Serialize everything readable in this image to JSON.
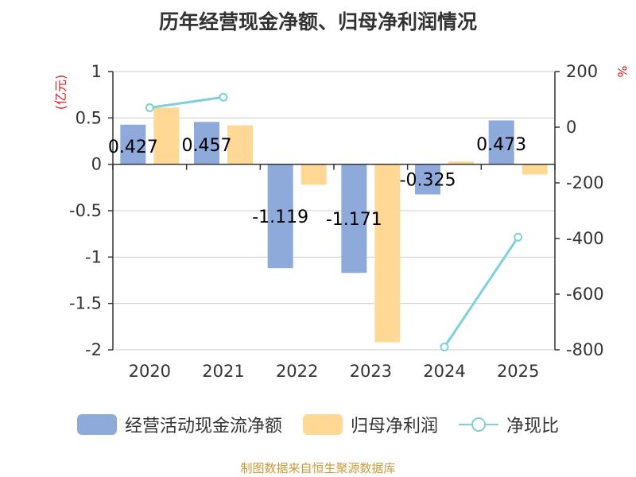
{
  "chart_data": {
    "type": "bar",
    "title": "历年经营现金净额、归母净利润情况",
    "categories": [
      "2020",
      "2021",
      "2022",
      "2023",
      "2024",
      "2025"
    ],
    "series": [
      {
        "name": "经营活动现金流净额",
        "axis": "left",
        "color": "#8eaadb",
        "values": [
          0.427,
          0.457,
          -1.119,
          -1.171,
          -0.325,
          0.473
        ],
        "labels": [
          "0.427",
          "0.457",
          "-1.119",
          "-1.171",
          "-0.325",
          "0.473"
        ]
      },
      {
        "name": "归母净利润",
        "axis": "left",
        "color": "#ffd895",
        "values": [
          0.61,
          0.42,
          -0.22,
          -1.92,
          0.03,
          -0.11
        ]
      },
      {
        "name": "净现比",
        "axis": "right",
        "type": "line",
        "color": "#7fd0d8",
        "values": [
          70,
          108,
          null,
          null,
          -790,
          -395
        ]
      }
    ],
    "y_left": {
      "label": "(亿元)",
      "min": -2,
      "max": 1,
      "ticks": [
        1,
        0.5,
        0,
        -0.5,
        -1,
        -1.5,
        -2
      ],
      "tick_labels": [
        "1",
        "0.5",
        "0",
        "-0.5",
        "-1",
        "-1.5",
        "-2"
      ]
    },
    "y_right": {
      "label": "%",
      "min": -800,
      "max": 200,
      "ticks": [
        200,
        0,
        -200,
        -400,
        -600,
        -800
      ],
      "tick_labels": [
        "200",
        "0",
        "-200",
        "-400",
        "-600",
        "-800"
      ]
    },
    "grid": true
  },
  "footer": {
    "source": "制图数据来自恒生聚源数据库"
  }
}
